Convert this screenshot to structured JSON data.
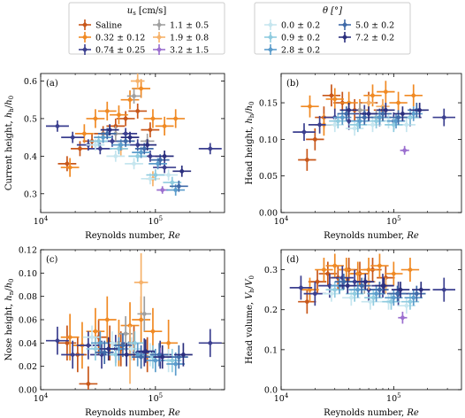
{
  "legend_us": {
    "title": "u_s [cm/s]",
    "title_parts": {
      "sym": "u",
      "sub": "s",
      "unit": "[cm/s]"
    },
    "entries": [
      {
        "label": "Saline",
        "color": "#c8571a"
      },
      {
        "label": "0.32 ± 0.12",
        "color": "#f08a24"
      },
      {
        "label": "0.74 ± 0.25",
        "color": "#3b3f8f"
      },
      {
        "label": "1.1 ± 0.5",
        "color": "#a0a0a0"
      },
      {
        "label": "1.9 ± 0.8",
        "color": "#f6b26b"
      },
      {
        "label": "3.2 ± 1.5",
        "color": "#9b6fcf"
      }
    ]
  },
  "legend_theta": {
    "title": "θ [°]",
    "entries": [
      {
        "label": "0.0 ± 0.2",
        "color": "#c6e6ef"
      },
      {
        "label": "0.9 ± 0.2",
        "color": "#8fcbdf"
      },
      {
        "label": "2.8 ± 0.2",
        "color": "#5b9ccb"
      },
      {
        "label": "5.0 ± 0.2",
        "color": "#3f6aa8"
      },
      {
        "label": "7.2 ± 0.2",
        "color": "#2b2f7e"
      }
    ]
  },
  "chart_data": [
    {
      "type": "scatter",
      "panel_label": "(a)",
      "xlabel": "Reynolds number, Re",
      "ylabel": "Current height, h_h/h_0",
      "ylabel_parts": {
        "pre": "Current height, ",
        "sym": "h",
        "sub": "h",
        "post": "/",
        "sym2": "h",
        "sub2": "0"
      },
      "xlabel_parts": {
        "pre": "Reynolds number, ",
        "sym": "Re"
      },
      "xscale": "log",
      "xlim": [
        10000,
        400000
      ],
      "ylim": [
        0.25,
        0.62
      ],
      "yticks": [
        "0.3",
        "0.4",
        "0.5",
        "0.6"
      ],
      "xtick_labels": [
        {
          "base": "10",
          "exp": "4"
        },
        {
          "base": "10",
          "exp": "5"
        }
      ],
      "series": [
        {
          "color": "#c8571a",
          "x": [
            17000,
            22000,
            28000,
            35000,
            45000,
            55000,
            70000,
            90000
          ],
          "y": [
            0.38,
            0.42,
            0.44,
            0.46,
            0.48,
            0.5,
            0.52,
            0.47
          ],
          "xerr": 0.08,
          "yerr": 0.02
        },
        {
          "color": "#f08a24",
          "x": [
            18000,
            24000,
            30000,
            38000,
            48000,
            60000,
            75000,
            95000,
            120000,
            150000
          ],
          "y": [
            0.37,
            0.46,
            0.5,
            0.52,
            0.51,
            0.55,
            0.58,
            0.5,
            0.48,
            0.5
          ],
          "xerr": 0.08,
          "yerr": 0.025
        },
        {
          "color": "#3b3f8f",
          "x": [
            14000,
            19000,
            26000,
            33000,
            42000,
            55000,
            70000,
            90000,
            120000,
            300000
          ],
          "y": [
            0.48,
            0.45,
            0.43,
            0.42,
            0.44,
            0.46,
            0.43,
            0.4,
            0.37,
            0.42
          ],
          "xerr": 0.1,
          "yerr": 0.015
        },
        {
          "color": "#a0a0a0",
          "x": [
            45000,
            65000,
            85000
          ],
          "y": [
            0.46,
            0.56,
            0.44
          ],
          "xerr": 0.06,
          "yerr": 0.02
        },
        {
          "color": "#f6b26b",
          "x": [
            50000,
            70000,
            95000
          ],
          "y": [
            0.42,
            0.6,
            0.34
          ],
          "xerr": 0.06,
          "yerr": 0.02
        },
        {
          "color": "#9b6fcf",
          "x": [
            115000
          ],
          "y": [
            0.31
          ],
          "xerr": 0.05,
          "yerr": 0.01
        },
        {
          "color": "#c6e6ef",
          "x": [
            30000,
            45000,
            65000,
            90000,
            130000
          ],
          "y": [
            0.43,
            0.4,
            0.38,
            0.34,
            0.35
          ],
          "xerr": 0.08,
          "yerr": 0.015
        },
        {
          "color": "#8fcbdf",
          "x": [
            32000,
            48000,
            70000,
            100000,
            140000
          ],
          "y": [
            0.44,
            0.42,
            0.4,
            0.35,
            0.33
          ],
          "xerr": 0.08,
          "yerr": 0.015
        },
        {
          "color": "#5b9ccb",
          "x": [
            35000,
            50000,
            75000,
            105000,
            150000
          ],
          "y": [
            0.45,
            0.43,
            0.41,
            0.38,
            0.31
          ],
          "xerr": 0.08,
          "yerr": 0.015
        },
        {
          "color": "#3f6aa8",
          "x": [
            38000,
            55000,
            80000,
            110000,
            160000
          ],
          "y": [
            0.46,
            0.44,
            0.42,
            0.39,
            0.32
          ],
          "xerr": 0.08,
          "yerr": 0.015
        },
        {
          "color": "#2b2f7e",
          "x": [
            40000,
            60000,
            85000,
            120000,
            170000
          ],
          "y": [
            0.47,
            0.45,
            0.43,
            0.4,
            0.36
          ],
          "xerr": 0.08,
          "yerr": 0.015
        }
      ]
    },
    {
      "type": "scatter",
      "panel_label": "(b)",
      "xlabel": "Reynolds number, Re",
      "ylabel": "Head height, h_h/h_0",
      "ylabel_parts": {
        "pre": "Head height, ",
        "sym": "h",
        "sub": "h",
        "post": "/",
        "sym2": "h",
        "sub2": "0"
      },
      "xlabel_parts": {
        "pre": "Reynolds number, ",
        "sym": "Re"
      },
      "xscale": "log",
      "xlim": [
        10000,
        400000
      ],
      "ylim": [
        0.0,
        0.19
      ],
      "yticks": [
        "0.00",
        "0.05",
        "0.10",
        "0.15"
      ],
      "xtick_labels": [
        {
          "base": "10",
          "exp": "4"
        },
        {
          "base": "10",
          "exp": "5"
        }
      ],
      "series": [
        {
          "color": "#c8571a",
          "x": [
            17000,
            20000,
            24000,
            28000,
            35000,
            45000,
            60000,
            80000
          ],
          "y": [
            0.072,
            0.1,
            0.13,
            0.16,
            0.15,
            0.14,
            0.15,
            0.14
          ],
          "xerr": 0.08,
          "yerr": 0.015
        },
        {
          "color": "#f08a24",
          "x": [
            18000,
            24000,
            30000,
            40000,
            50000,
            65000,
            85000,
            110000,
            150000
          ],
          "y": [
            0.145,
            0.12,
            0.155,
            0.15,
            0.14,
            0.16,
            0.165,
            0.15,
            0.16
          ],
          "xerr": 0.08,
          "yerr": 0.015
        },
        {
          "color": "#3b3f8f",
          "x": [
            16000,
            22000,
            30000,
            40000,
            55000,
            75000,
            100000,
            140000,
            280000
          ],
          "y": [
            0.11,
            0.12,
            0.13,
            0.125,
            0.135,
            0.13,
            0.125,
            0.13,
            0.13
          ],
          "xerr": 0.1,
          "yerr": 0.012
        },
        {
          "color": "#a0a0a0",
          "x": [
            50000,
            70000
          ],
          "y": [
            0.14,
            0.13
          ],
          "xerr": 0.06,
          "yerr": 0.01
        },
        {
          "color": "#f6b26b",
          "x": [
            60000,
            80000
          ],
          "y": [
            0.15,
            0.145
          ],
          "xerr": 0.06,
          "yerr": 0.01
        },
        {
          "color": "#9b6fcf",
          "x": [
            125000
          ],
          "y": [
            0.085
          ],
          "xerr": 0.04,
          "yerr": 0.006
        },
        {
          "color": "#c6e6ef",
          "x": [
            30000,
            45000,
            65000,
            90000,
            130000
          ],
          "y": [
            0.12,
            0.115,
            0.12,
            0.125,
            0.12
          ],
          "xerr": 0.08,
          "yerr": 0.01
        },
        {
          "color": "#8fcbdf",
          "x": [
            32000,
            48000,
            70000,
            100000,
            140000
          ],
          "y": [
            0.125,
            0.12,
            0.125,
            0.12,
            0.13
          ],
          "xerr": 0.08,
          "yerr": 0.01
        },
        {
          "color": "#5b9ccb",
          "x": [
            35000,
            50000,
            75000,
            105000,
            150000
          ],
          "y": [
            0.13,
            0.125,
            0.13,
            0.125,
            0.135
          ],
          "xerr": 0.08,
          "yerr": 0.01
        },
        {
          "color": "#3f6aa8",
          "x": [
            38000,
            55000,
            80000,
            110000,
            160000
          ],
          "y": [
            0.135,
            0.13,
            0.135,
            0.13,
            0.14
          ],
          "xerr": 0.08,
          "yerr": 0.01
        },
        {
          "color": "#2b2f7e",
          "x": [
            40000,
            60000,
            85000,
            120000,
            170000
          ],
          "y": [
            0.14,
            0.135,
            0.14,
            0.135,
            0.14
          ],
          "xerr": 0.08,
          "yerr": 0.01
        }
      ]
    },
    {
      "type": "scatter",
      "panel_label": "(c)",
      "xlabel": "Reynolds number, Re",
      "ylabel": "Nose height, h_n/h_0",
      "ylabel_parts": {
        "pre": "Nose height, ",
        "sym": "h",
        "sub": "n",
        "post": "/",
        "sym2": "h",
        "sub2": "0"
      },
      "xlabel_parts": {
        "pre": "Reynolds number, ",
        "sym": "Re"
      },
      "xscale": "log",
      "xlim": [
        10000,
        400000
      ],
      "ylim": [
        0.0,
        0.12
      ],
      "yticks": [
        "0.00",
        "0.02",
        "0.04",
        "0.06",
        "0.08",
        "0.10",
        "0.12"
      ],
      "xtick_labels": [
        {
          "base": "10",
          "exp": "4"
        },
        {
          "base": "10",
          "exp": "5"
        }
      ],
      "series": [
        {
          "color": "#c8571a",
          "x": [
            17000,
            21000,
            26000,
            32000,
            40000,
            50000,
            65000,
            85000
          ],
          "y": [
            0.04,
            0.03,
            0.005,
            0.045,
            0.04,
            0.035,
            0.04,
            0.03
          ],
          "xerr": 0.08,
          "yerr": 0.015
        },
        {
          "color": "#f08a24",
          "x": [
            18000,
            23000,
            30000,
            38000,
            48000,
            60000,
            75000,
            95000,
            130000
          ],
          "y": [
            0.045,
            0.038,
            0.05,
            0.06,
            0.04,
            0.055,
            0.06,
            0.05,
            0.04
          ],
          "xerr": 0.08,
          "yerr": 0.02
        },
        {
          "color": "#3b3f8f",
          "x": [
            14000,
            19000,
            26000,
            34000,
            45000,
            60000,
            80000,
            110000,
            300000
          ],
          "y": [
            0.042,
            0.03,
            0.038,
            0.03,
            0.035,
            0.04,
            0.032,
            0.03,
            0.04
          ],
          "xerr": 0.1,
          "yerr": 0.012
        },
        {
          "color": "#a0a0a0",
          "x": [
            55000,
            80000
          ],
          "y": [
            0.048,
            0.065
          ],
          "xerr": 0.06,
          "yerr": 0.015
        },
        {
          "color": "#f6b26b",
          "x": [
            60000,
            75000
          ],
          "y": [
            0.03,
            0.092
          ],
          "xerr": 0.06,
          "yerr": 0.025
        },
        {
          "color": "#9b6fcf",
          "x": [
            110000
          ],
          "y": [
            0.03
          ],
          "xerr": 0.05,
          "yerr": 0.006
        },
        {
          "color": "#c6e6ef",
          "x": [
            28000,
            42000,
            62000,
            90000,
            130000
          ],
          "y": [
            0.045,
            0.04,
            0.035,
            0.03,
            0.025
          ],
          "xerr": 0.08,
          "yerr": 0.01
        },
        {
          "color": "#8fcbdf",
          "x": [
            30000,
            45000,
            66000,
            95000,
            140000
          ],
          "y": [
            0.035,
            0.03,
            0.04,
            0.028,
            0.025
          ],
          "xerr": 0.08,
          "yerr": 0.01
        },
        {
          "color": "#5b9ccb",
          "x": [
            33000,
            48000,
            70000,
            100000,
            150000
          ],
          "y": [
            0.04,
            0.035,
            0.03,
            0.025,
            0.022
          ],
          "xerr": 0.08,
          "yerr": 0.01
        },
        {
          "color": "#3f6aa8",
          "x": [
            36000,
            52000,
            75000,
            108000,
            160000
          ],
          "y": [
            0.032,
            0.038,
            0.028,
            0.03,
            0.028
          ],
          "xerr": 0.08,
          "yerr": 0.01
        },
        {
          "color": "#2b2f7e",
          "x": [
            39000,
            56000,
            82000,
            115000,
            175000
          ],
          "y": [
            0.035,
            0.03,
            0.033,
            0.028,
            0.03
          ],
          "xerr": 0.08,
          "yerr": 0.01
        }
      ]
    },
    {
      "type": "scatter",
      "panel_label": "(d)",
      "xlabel": "Reynolds number, Re",
      "ylabel": "Head volume, V_h/V_0",
      "ylabel_parts": {
        "pre": "Head volume, ",
        "sym": "V",
        "sub": "h",
        "post": "/",
        "sym2": "V",
        "sub2": "0"
      },
      "xlabel_parts": {
        "pre": "Reynolds number, ",
        "sym": "Re"
      },
      "xscale": "log",
      "xlim": [
        10000,
        400000
      ],
      "ylim": [
        0.0,
        0.35
      ],
      "yticks": [
        "0.0",
        "0.1",
        "0.2",
        "0.3"
      ],
      "xtick_labels": [
        {
          "base": "10",
          "exp": "4"
        },
        {
          "base": "10",
          "exp": "5"
        }
      ],
      "series": [
        {
          "color": "#c8571a",
          "x": [
            17000,
            21000,
            26000,
            32000,
            40000,
            50000,
            65000,
            85000
          ],
          "y": [
            0.22,
            0.27,
            0.29,
            0.28,
            0.3,
            0.29,
            0.3,
            0.28
          ],
          "xerr": 0.08,
          "yerr": 0.03
        },
        {
          "color": "#f08a24",
          "x": [
            18000,
            24000,
            30000,
            38000,
            48000,
            60000,
            75000,
            100000,
            140000
          ],
          "y": [
            0.25,
            0.3,
            0.31,
            0.3,
            0.29,
            0.3,
            0.31,
            0.29,
            0.3
          ],
          "xerr": 0.08,
          "yerr": 0.03
        },
        {
          "color": "#3b3f8f",
          "x": [
            15000,
            20000,
            27000,
            35000,
            45000,
            60000,
            80000,
            110000,
            280000
          ],
          "y": [
            0.255,
            0.24,
            0.26,
            0.28,
            0.27,
            0.25,
            0.26,
            0.24,
            0.25
          ],
          "xerr": 0.1,
          "yerr": 0.03
        },
        {
          "color": "#a0a0a0",
          "x": [
            55000,
            75000
          ],
          "y": [
            0.26,
            0.25
          ],
          "xerr": 0.06,
          "yerr": 0.02
        },
        {
          "color": "#f6b26b",
          "x": [
            60000,
            85000
          ],
          "y": [
            0.27,
            0.26
          ],
          "xerr": 0.06,
          "yerr": 0.02
        },
        {
          "color": "#9b6fcf",
          "x": [
            120000
          ],
          "y": [
            0.18
          ],
          "xerr": 0.04,
          "yerr": 0.015
        },
        {
          "color": "#c6e6ef",
          "x": [
            28000,
            42000,
            62000,
            90000,
            130000
          ],
          "y": [
            0.24,
            0.23,
            0.22,
            0.22,
            0.21
          ],
          "xerr": 0.08,
          "yerr": 0.02
        },
        {
          "color": "#8fcbdf",
          "x": [
            30000,
            45000,
            66000,
            95000,
            140000
          ],
          "y": [
            0.25,
            0.24,
            0.23,
            0.22,
            0.22
          ],
          "xerr": 0.08,
          "yerr": 0.02
        },
        {
          "color": "#5b9ccb",
          "x": [
            33000,
            48000,
            70000,
            100000,
            150000
          ],
          "y": [
            0.26,
            0.25,
            0.24,
            0.23,
            0.23
          ],
          "xerr": 0.08,
          "yerr": 0.02
        },
        {
          "color": "#3f6aa8",
          "x": [
            36000,
            52000,
            75000,
            108000,
            160000
          ],
          "y": [
            0.27,
            0.26,
            0.25,
            0.24,
            0.24
          ],
          "xerr": 0.08,
          "yerr": 0.02
        },
        {
          "color": "#2b2f7e",
          "x": [
            39000,
            56000,
            82000,
            115000,
            175000
          ],
          "y": [
            0.26,
            0.27,
            0.26,
            0.25,
            0.25
          ],
          "xerr": 0.08,
          "yerr": 0.02
        }
      ]
    }
  ]
}
